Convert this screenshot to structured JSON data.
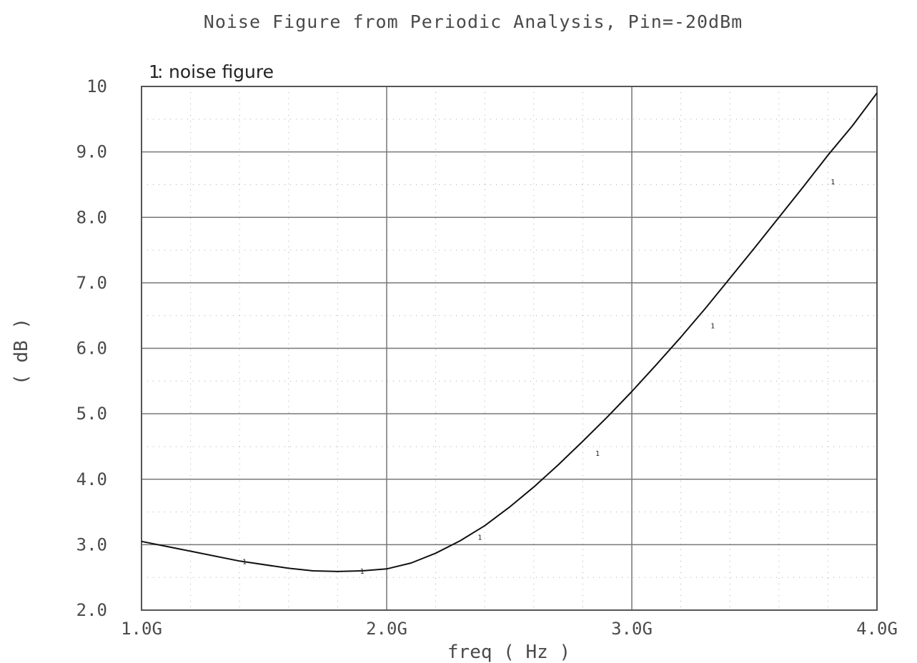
{
  "chart_data": {
    "type": "line",
    "title": "Noise Figure from Periodic Analysis, Pin=-20dBm",
    "xlabel": "freq ( Hz )",
    "ylabel": "( dB )",
    "xlim": [
      1.0,
      4.0
    ],
    "ylim": [
      2.0,
      10.0
    ],
    "x_ticks": [
      {
        "value": 1.0,
        "label": "1.0G"
      },
      {
        "value": 2.0,
        "label": "2.0G"
      },
      {
        "value": 3.0,
        "label": "3.0G"
      },
      {
        "value": 4.0,
        "label": "4.0G"
      }
    ],
    "y_ticks": [
      {
        "value": 2.0,
        "label": "2.0"
      },
      {
        "value": 3.0,
        "label": "3.0"
      },
      {
        "value": 4.0,
        "label": "4.0"
      },
      {
        "value": 5.0,
        "label": "5.0"
      },
      {
        "value": 6.0,
        "label": "6.0"
      },
      {
        "value": 7.0,
        "label": "7.0"
      },
      {
        "value": 8.0,
        "label": "8.0"
      },
      {
        "value": 9.0,
        "label": "9.0"
      },
      {
        "value": 10.0,
        "label": "10"
      }
    ],
    "grid": true,
    "legend_position": "top-left",
    "series": [
      {
        "name": "noise figure",
        "legend_marker": "1",
        "color": "#111111",
        "x": [
          1.0,
          1.2,
          1.4,
          1.6,
          1.7,
          1.8,
          1.9,
          2.0,
          2.1,
          2.2,
          2.3,
          2.4,
          2.5,
          2.6,
          2.7,
          2.8,
          2.9,
          3.0,
          3.1,
          3.2,
          3.3,
          3.4,
          3.5,
          3.6,
          3.7,
          3.8,
          3.9,
          4.0
        ],
        "y": [
          3.05,
          2.9,
          2.75,
          2.64,
          2.6,
          2.59,
          2.6,
          2.63,
          2.72,
          2.87,
          3.06,
          3.29,
          3.57,
          3.88,
          4.22,
          4.58,
          4.95,
          5.34,
          5.75,
          6.17,
          6.61,
          7.07,
          7.53,
          8.0,
          8.47,
          8.95,
          9.4,
          9.9
        ],
        "markers": [
          {
            "x": 1.42,
            "y": 2.75,
            "label": "1"
          },
          {
            "x": 1.9,
            "y": 2.6,
            "label": "1"
          },
          {
            "x": 2.38,
            "y": 3.12,
            "label": "1"
          },
          {
            "x": 2.86,
            "y": 4.4,
            "label": "1"
          },
          {
            "x": 3.33,
            "y": 6.35,
            "label": "1"
          },
          {
            "x": 3.82,
            "y": 8.55,
            "label": "1"
          }
        ]
      }
    ]
  }
}
